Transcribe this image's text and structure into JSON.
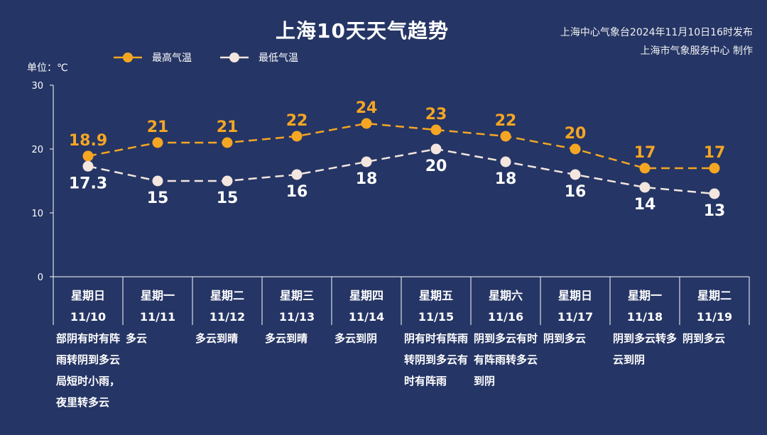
{
  "title": "上海10天天气趋势",
  "publisher_line1": "上海中心气象台2024年11月10日16时发布",
  "publisher_line2": "上海市气象服务中心 制作",
  "unit_label": "单位：℃",
  "colors": {
    "background": "#253565",
    "high": "#f5a623",
    "low": "#f3e6df",
    "axis": "#ffffff"
  },
  "chart_data": {
    "type": "line",
    "ylim": [
      0,
      30
    ],
    "yticks": [
      0,
      10,
      20,
      30
    ],
    "categories": [
      "星期日",
      "星期一",
      "星期二",
      "星期三",
      "星期四",
      "星期五",
      "星期六",
      "星期日",
      "星期一",
      "星期二"
    ],
    "dates": [
      "11/10",
      "11/11",
      "11/12",
      "11/13",
      "11/14",
      "11/15",
      "11/16",
      "11/17",
      "11/18",
      "11/19"
    ],
    "series": [
      {
        "name": "最高气温",
        "values": [
          18.9,
          21,
          21,
          22,
          24,
          23,
          22,
          20,
          17,
          17
        ],
        "labels": [
          "18.9",
          "21",
          "21",
          "22",
          "24",
          "23",
          "22",
          "20",
          "17",
          "17"
        ]
      },
      {
        "name": "最低气温",
        "values": [
          17.3,
          15,
          15,
          16,
          18,
          20,
          18,
          16,
          14,
          13
        ],
        "labels": [
          "17.3",
          "15",
          "15",
          "16",
          "18",
          "20",
          "18",
          "16",
          "14",
          "13"
        ]
      }
    ]
  },
  "weather": [
    "部阴有时有阵雨转阴到多云局短时小雨，夜里转多云",
    "多云",
    "多云到晴",
    "多云到晴",
    "多云到阴",
    "阴有时有阵雨转阴到多云有时有阵雨",
    "阴到多云有时有阵雨转多云到阴",
    "阴到多云",
    "阴到多云转多云到阴",
    "阴到多云"
  ]
}
